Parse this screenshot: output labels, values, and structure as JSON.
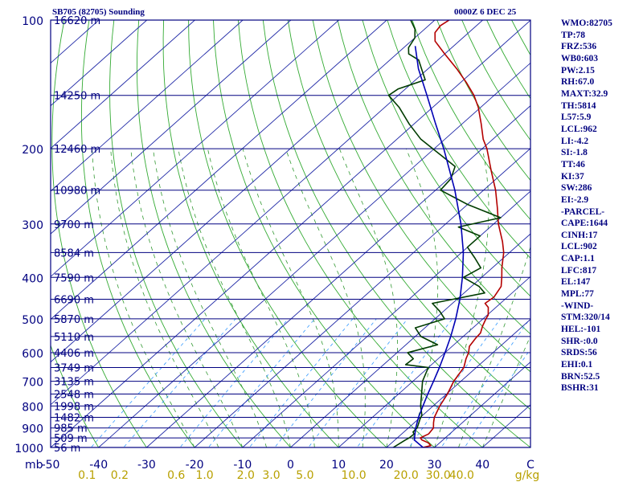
{
  "header": {
    "station": "SB705 (82705) Sounding",
    "valid_time": "0000Z  6 DEC 25"
  },
  "indices": [
    "WMO:82705",
    "TP:78",
    "FRZ:536",
    "WB0:603",
    "PW:2.15",
    "RH:67.0",
    "MAXT:32.9",
    "TH:5814",
    "L57:5.9",
    "LCL:962",
    "LI:-4.2",
    "SI:-1.8",
    "TT:46",
    "KI:37",
    "SW:286",
    "EI:-2.9",
    "-PARCEL-",
    "CAPE:1644",
    "CINH:17",
    "LCL:902",
    "CAP:1.1",
    "LFC:817",
    "EL:147",
    "MPL:77",
    "-WIND-",
    "STM:320/14",
    "HEL:-101",
    "SHR-:0.0",
    "SRDS:56",
    "EHI:0.1",
    "BRN:52.5",
    "BSHR:31"
  ],
  "chart_data": {
    "type": "line",
    "subtype": "skew-t log-p",
    "title": "SB705 (82705) Sounding",
    "xlabel": "Temperature (C)",
    "ylabel": "mb",
    "ylim": [
      1000,
      100
    ],
    "xlim": [
      -50,
      50
    ],
    "pressure_ticks": [
      100,
      200,
      300,
      400,
      500,
      600,
      700,
      800,
      900,
      1000
    ],
    "temperature_ticks": [
      -50,
      -40,
      -30,
      -20,
      -10,
      0,
      10,
      20,
      30,
      40,
      50
    ],
    "temperature_tick_labels": [
      "-50",
      "-40",
      "-30",
      "-20",
      "-10",
      "0",
      "10",
      "20",
      "30",
      "40",
      "C"
    ],
    "pressure_unit": "mb",
    "mixing_ratio_unit": "g/kg",
    "mixing_ratio_labels": [
      "0.1",
      "0.2",
      "0.6",
      "1.0",
      "2.0",
      "3.0",
      "5.0",
      "10.0",
      "20.0",
      "30.0",
      "40.0"
    ],
    "mixing_ratio_values": [
      0.1,
      0.2,
      0.6,
      1.0,
      2.0,
      3.0,
      5.0,
      10.0,
      20.0,
      30.0,
      40.0
    ],
    "height_levels": [
      {
        "p": 100,
        "label": "16620 m"
      },
      {
        "p": 150,
        "label": "14250 m"
      },
      {
        "p": 200,
        "label": "12460 m"
      },
      {
        "p": 250,
        "label": "10980 m"
      },
      {
        "p": 300,
        "label": "9700 m"
      },
      {
        "p": 350,
        "label": "8584 m"
      },
      {
        "p": 400,
        "label": "7590 m"
      },
      {
        "p": 450,
        "label": "6690 m"
      },
      {
        "p": 500,
        "label": "5870 m"
      },
      {
        "p": 550,
        "label": "5110 m"
      },
      {
        "p": 600,
        "label": "4406 m"
      },
      {
        "p": 650,
        "label": "3749 m"
      },
      {
        "p": 700,
        "label": "3135 m"
      },
      {
        "p": 750,
        "label": "2548 m"
      },
      {
        "p": 800,
        "label": "1998 m"
      },
      {
        "p": 850,
        "label": "1482 m"
      },
      {
        "p": 900,
        "label": "985 m"
      },
      {
        "p": 950,
        "label": "509 m"
      },
      {
        "p": 1000,
        "label": "56 m"
      }
    ],
    "series": [
      {
        "name": "Temperature",
        "color": "#b40000",
        "points": [
          [
            1008,
            26.5
          ],
          [
            1000,
            27.6
          ],
          [
            990,
            28.8
          ],
          [
            975,
            27.6
          ],
          [
            960,
            25.6
          ],
          [
            950,
            24.8
          ],
          [
            930,
            25.6
          ],
          [
            900,
            25.2
          ],
          [
            875,
            24.0
          ],
          [
            850,
            22.9
          ],
          [
            800,
            21.4
          ],
          [
            750,
            20.2
          ],
          [
            700,
            18.5
          ],
          [
            650,
            17.4
          ],
          [
            620,
            15.8
          ],
          [
            600,
            14.9
          ],
          [
            580,
            13.6
          ],
          [
            555,
            13.0
          ],
          [
            540,
            12.8
          ],
          [
            520,
            11.6
          ],
          [
            500,
            10.6
          ],
          [
            490,
            10.2
          ],
          [
            470,
            8.4
          ],
          [
            460,
            6.8
          ],
          [
            445,
            7.2
          ],
          [
            420,
            6.2
          ],
          [
            400,
            4.2
          ],
          [
            380,
            2.0
          ],
          [
            350,
            -1.2
          ],
          [
            330,
            -4.0
          ],
          [
            300,
            -9.0
          ],
          [
            275,
            -13.0
          ],
          [
            250,
            -17.5
          ],
          [
            225,
            -23.0
          ],
          [
            200,
            -29.0
          ],
          [
            190,
            -32.0
          ],
          [
            175,
            -36.0
          ],
          [
            160,
            -40.5
          ],
          [
            150,
            -44.2
          ],
          [
            140,
            -48.8
          ],
          [
            130,
            -54.0
          ],
          [
            120,
            -60.0
          ],
          [
            112,
            -65.0
          ],
          [
            107,
            -67.0
          ],
          [
            103,
            -67.5
          ],
          [
            100,
            -67.0
          ]
        ]
      },
      {
        "name": "Dewpoint",
        "color": "#003c00",
        "points": [
          [
            1008,
            21.0
          ],
          [
            1000,
            21.4
          ],
          [
            980,
            21.8
          ],
          [
            960,
            22.2
          ],
          [
            950,
            22.5
          ],
          [
            930,
            22.6
          ],
          [
            920,
            21.9
          ],
          [
            900,
            21.8
          ],
          [
            860,
            20.4
          ],
          [
            840,
            19.8
          ],
          [
            800,
            17.4
          ],
          [
            750,
            14.8
          ],
          [
            700,
            12.0
          ],
          [
            650,
            10.0
          ],
          [
            640,
            4.6
          ],
          [
            620,
            4.8
          ],
          [
            600,
            2.2
          ],
          [
            575,
            6.6
          ],
          [
            550,
            1.2
          ],
          [
            525,
            -2.0
          ],
          [
            500,
            2.0
          ],
          [
            480,
            -0.8
          ],
          [
            460,
            -4.2
          ],
          [
            435,
            4.3
          ],
          [
            420,
            1.6
          ],
          [
            400,
            -3.8
          ],
          [
            380,
            -2.4
          ],
          [
            360,
            -6.0
          ],
          [
            340,
            -10.0
          ],
          [
            320,
            -10.0
          ],
          [
            305,
            -16.6
          ],
          [
            290,
            -10.0
          ],
          [
            270,
            -20.0
          ],
          [
            250,
            -29.0
          ],
          [
            235,
            -29.5
          ],
          [
            220,
            -31.5
          ],
          [
            205,
            -38.0
          ],
          [
            190,
            -45.0
          ],
          [
            175,
            -51.0
          ],
          [
            160,
            -57.0
          ],
          [
            150,
            -62.0
          ],
          [
            145,
            -61.5
          ],
          [
            138,
            -58.0
          ],
          [
            132,
            -60.5
          ],
          [
            124,
            -64.0
          ],
          [
            120,
            -67.5
          ],
          [
            116,
            -69.0
          ],
          [
            110,
            -70.0
          ],
          [
            105,
            -72.0
          ],
          [
            100,
            -75.0
          ]
        ]
      },
      {
        "name": "Parcel",
        "color": "#0000b4",
        "points": [
          [
            1000,
            27.6
          ],
          [
            960,
            24.0
          ],
          [
            900,
            21.5
          ],
          [
            850,
            19.6
          ],
          [
            800,
            17.9
          ],
          [
            750,
            16.1
          ],
          [
            700,
            14.3
          ],
          [
            650,
            12.3
          ],
          [
            600,
            10.0
          ],
          [
            550,
            7.4
          ],
          [
            500,
            4.3
          ],
          [
            450,
            0.6
          ],
          [
            400,
            -4.0
          ],
          [
            350,
            -9.6
          ],
          [
            300,
            -16.8
          ],
          [
            250,
            -26.0
          ],
          [
            200,
            -38.0
          ],
          [
            175,
            -45.5
          ],
          [
            150,
            -54.0
          ],
          [
            130,
            -62.0
          ],
          [
            115,
            -68.0
          ]
        ]
      }
    ]
  }
}
